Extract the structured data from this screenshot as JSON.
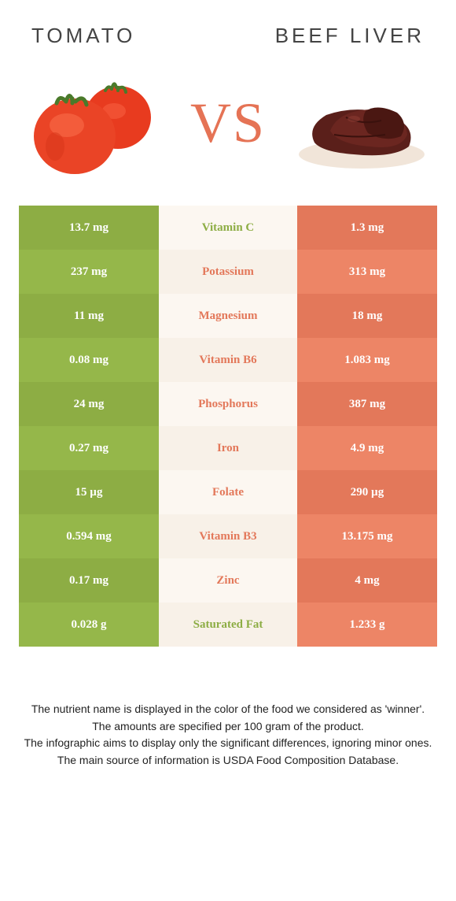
{
  "header": {
    "left": "Tomato",
    "right": "Beef Liver"
  },
  "vs_label": "VS",
  "colors": {
    "green_odd": "#8dad44",
    "green_even": "#95b74a",
    "orange_odd": "#e3785a",
    "orange_even": "#ed8566",
    "mid_odd": "#fcf7f1",
    "mid_even": "#f8f1e8",
    "vs_text": "#e57355",
    "title_text": "#444444"
  },
  "nutrients": [
    {
      "name": "Vitamin C",
      "left": "13.7 mg",
      "right": "1.3 mg",
      "winner": "left"
    },
    {
      "name": "Potassium",
      "left": "237 mg",
      "right": "313 mg",
      "winner": "right"
    },
    {
      "name": "Magnesium",
      "left": "11 mg",
      "right": "18 mg",
      "winner": "right"
    },
    {
      "name": "Vitamin B6",
      "left": "0.08 mg",
      "right": "1.083 mg",
      "winner": "right"
    },
    {
      "name": "Phosphorus",
      "left": "24 mg",
      "right": "387 mg",
      "winner": "right"
    },
    {
      "name": "Iron",
      "left": "0.27 mg",
      "right": "4.9 mg",
      "winner": "right"
    },
    {
      "name": "Folate",
      "left": "15 µg",
      "right": "290 µg",
      "winner": "right"
    },
    {
      "name": "Vitamin B3",
      "left": "0.594 mg",
      "right": "13.175 mg",
      "winner": "right"
    },
    {
      "name": "Zinc",
      "left": "0.17 mg",
      "right": "4 mg",
      "winner": "right"
    },
    {
      "name": "Saturated Fat",
      "left": "0.028 g",
      "right": "1.233 g",
      "winner": "left"
    }
  ],
  "footer": {
    "line1": "The nutrient name is displayed in the color of the food we considered as 'winner'.",
    "line2": "The amounts are specified per 100 gram of the product.",
    "line3": "The infographic aims to display only the significant differences, ignoring minor ones.",
    "line4": "The main source of information is USDA Food Composition Database."
  }
}
